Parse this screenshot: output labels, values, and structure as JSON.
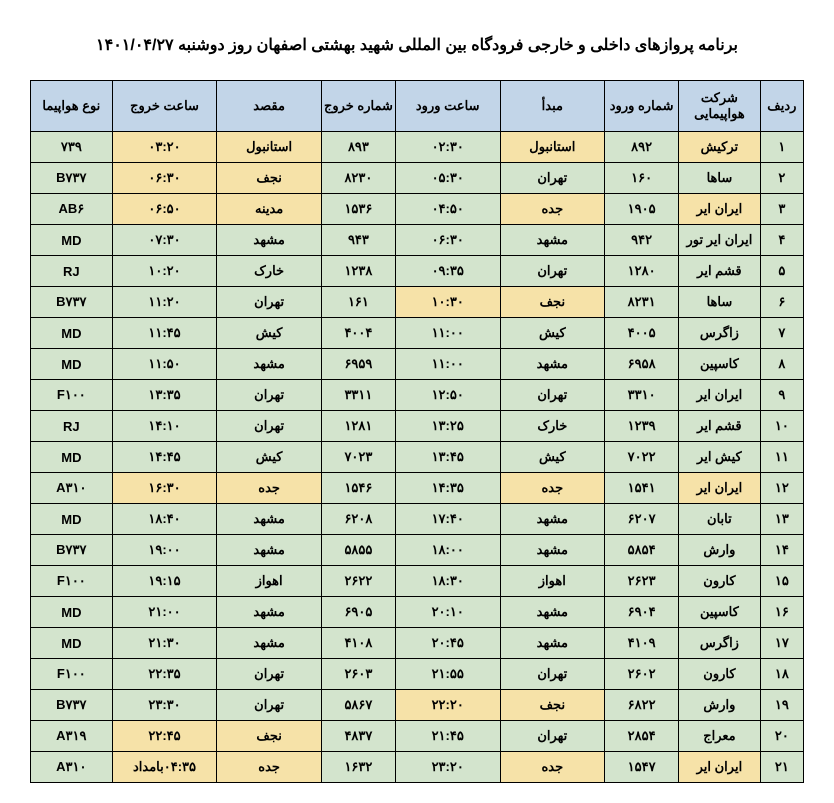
{
  "title": "برنامه پروازهای داخلی و خارجی فرودگاه بین المللی شهید بهشتی اصفهان روز دوشنبه ۱۴۰۱/۰۴/۲۷",
  "colors": {
    "header_bg": "#c2d5e8",
    "green_bg": "#d3e4cd",
    "yellow_bg": "#f6e2a8",
    "border": "#000000"
  },
  "headers": {
    "row_num": "ردیف",
    "airline": "شرکت هواپیمایی",
    "arrival_num": "شماره ورود",
    "origin": "مبدأ",
    "arrival_time": "ساعت ورود",
    "departure_num": "شماره خروج",
    "destination": "مقصد",
    "departure_time": "ساعت خروج",
    "aircraft": "نوع هواپیما"
  },
  "rows": [
    {
      "n": "۱",
      "airline": "ترکیش",
      "arrnum": "۸۹۲",
      "origin": "استانبول",
      "arrtime": "۰۲:۳۰",
      "depnum": "۸۹۳",
      "dest": "استانبول",
      "deptime": "۰۳:۲۰",
      "aircraft": "۷۳۹",
      "c": {
        "n": "g",
        "airline": "y",
        "arrnum": "g",
        "origin": "y",
        "arrtime": "g",
        "depnum": "g",
        "dest": "y",
        "deptime": "y",
        "aircraft": "g"
      }
    },
    {
      "n": "۲",
      "airline": "ساها",
      "arrnum": "۱۶۰",
      "origin": "تهران",
      "arrtime": "۰۵:۳۰",
      "depnum": "۸۲۳۰",
      "dest": "نجف",
      "deptime": "۰۶:۳۰",
      "aircraft": "B۷۳۷",
      "c": {
        "n": "g",
        "airline": "g",
        "arrnum": "g",
        "origin": "g",
        "arrtime": "g",
        "depnum": "g",
        "dest": "y",
        "deptime": "y",
        "aircraft": "g"
      }
    },
    {
      "n": "۳",
      "airline": "ایران ایر",
      "arrnum": "۱۹۰۵",
      "origin": "جده",
      "arrtime": "۰۴:۵۰",
      "depnum": "۱۵۳۶",
      "dest": "مدینه",
      "deptime": "۰۶:۵۰",
      "aircraft": "AB۶",
      "c": {
        "n": "g",
        "airline": "y",
        "arrnum": "g",
        "origin": "y",
        "arrtime": "g",
        "depnum": "g",
        "dest": "y",
        "deptime": "y",
        "aircraft": "g"
      }
    },
    {
      "n": "۴",
      "airline": "ایران ایر تور",
      "arrnum": "۹۴۲",
      "origin": "مشهد",
      "arrtime": "۰۶:۳۰",
      "depnum": "۹۴۳",
      "dest": "مشهد",
      "deptime": "۰۷:۳۰",
      "aircraft": "MD",
      "c": {
        "n": "g",
        "airline": "g",
        "arrnum": "g",
        "origin": "g",
        "arrtime": "g",
        "depnum": "g",
        "dest": "g",
        "deptime": "g",
        "aircraft": "g"
      }
    },
    {
      "n": "۵",
      "airline": "قشم ایر",
      "arrnum": "۱۲۸۰",
      "origin": "تهران",
      "arrtime": "۰۹:۳۵",
      "depnum": "۱۲۳۸",
      "dest": "خارک",
      "deptime": "۱۰:۲۰",
      "aircraft": "RJ",
      "c": {
        "n": "g",
        "airline": "g",
        "arrnum": "g",
        "origin": "g",
        "arrtime": "g",
        "depnum": "g",
        "dest": "g",
        "deptime": "g",
        "aircraft": "g"
      }
    },
    {
      "n": "۶",
      "airline": "ساها",
      "arrnum": "۸۲۳۱",
      "origin": "نجف",
      "arrtime": "۱۰:۳۰",
      "depnum": "۱۶۱",
      "dest": "تهران",
      "deptime": "۱۱:۲۰",
      "aircraft": "B۷۳۷",
      "c": {
        "n": "g",
        "airline": "g",
        "arrnum": "g",
        "origin": "y",
        "arrtime": "y",
        "depnum": "g",
        "dest": "g",
        "deptime": "g",
        "aircraft": "g"
      }
    },
    {
      "n": "۷",
      "airline": "زاگرس",
      "arrnum": "۴۰۰۵",
      "origin": "کیش",
      "arrtime": "۱۱:۰۰",
      "depnum": "۴۰۰۴",
      "dest": "کیش",
      "deptime": "۱۱:۴۵",
      "aircraft": "MD",
      "c": {
        "n": "g",
        "airline": "g",
        "arrnum": "g",
        "origin": "g",
        "arrtime": "g",
        "depnum": "g",
        "dest": "g",
        "deptime": "g",
        "aircraft": "g"
      }
    },
    {
      "n": "۸",
      "airline": "کاسپین",
      "arrnum": "۶۹۵۸",
      "origin": "مشهد",
      "arrtime": "۱۱:۰۰",
      "depnum": "۶۹۵۹",
      "dest": "مشهد",
      "deptime": "۱۱:۵۰",
      "aircraft": "MD",
      "c": {
        "n": "g",
        "airline": "g",
        "arrnum": "g",
        "origin": "g",
        "arrtime": "g",
        "depnum": "g",
        "dest": "g",
        "deptime": "g",
        "aircraft": "g"
      }
    },
    {
      "n": "۹",
      "airline": "ایران ایر",
      "arrnum": "۳۳۱۰",
      "origin": "تهران",
      "arrtime": "۱۲:۵۰",
      "depnum": "۳۳۱۱",
      "dest": "تهران",
      "deptime": "۱۳:۳۵",
      "aircraft": "F۱۰۰",
      "c": {
        "n": "g",
        "airline": "g",
        "arrnum": "g",
        "origin": "g",
        "arrtime": "g",
        "depnum": "g",
        "dest": "g",
        "deptime": "g",
        "aircraft": "g"
      }
    },
    {
      "n": "۱۰",
      "airline": "قشم ایر",
      "arrnum": "۱۲۳۹",
      "origin": "خارک",
      "arrtime": "۱۳:۲۵",
      "depnum": "۱۲۸۱",
      "dest": "تهران",
      "deptime": "۱۴:۱۰",
      "aircraft": "RJ",
      "c": {
        "n": "g",
        "airline": "g",
        "arrnum": "g",
        "origin": "g",
        "arrtime": "g",
        "depnum": "g",
        "dest": "g",
        "deptime": "g",
        "aircraft": "g"
      }
    },
    {
      "n": "۱۱",
      "airline": "کیش ایر",
      "arrnum": "۷۰۲۲",
      "origin": "کیش",
      "arrtime": "۱۳:۴۵",
      "depnum": "۷۰۲۳",
      "dest": "کیش",
      "deptime": "۱۴:۴۵",
      "aircraft": "MD",
      "c": {
        "n": "g",
        "airline": "g",
        "arrnum": "g",
        "origin": "g",
        "arrtime": "g",
        "depnum": "g",
        "dest": "g",
        "deptime": "g",
        "aircraft": "g"
      }
    },
    {
      "n": "۱۲",
      "airline": "ایران ایر",
      "arrnum": "۱۵۴۱",
      "origin": "جده",
      "arrtime": "۱۴:۳۵",
      "depnum": "۱۵۴۶",
      "dest": "جده",
      "deptime": "۱۶:۳۰",
      "aircraft": "A۳۱۰",
      "c": {
        "n": "g",
        "airline": "y",
        "arrnum": "g",
        "origin": "y",
        "arrtime": "g",
        "depnum": "g",
        "dest": "y",
        "deptime": "y",
        "aircraft": "g"
      }
    },
    {
      "n": "۱۳",
      "airline": "تابان",
      "arrnum": "۶۲۰۷",
      "origin": "مشهد",
      "arrtime": "۱۷:۴۰",
      "depnum": "۶۲۰۸",
      "dest": "مشهد",
      "deptime": "۱۸:۴۰",
      "aircraft": "MD",
      "c": {
        "n": "g",
        "airline": "g",
        "arrnum": "g",
        "origin": "g",
        "arrtime": "g",
        "depnum": "g",
        "dest": "g",
        "deptime": "g",
        "aircraft": "g"
      }
    },
    {
      "n": "۱۴",
      "airline": "وارش",
      "arrnum": "۵۸۵۴",
      "origin": "مشهد",
      "arrtime": "۱۸:۰۰",
      "depnum": "۵۸۵۵",
      "dest": "مشهد",
      "deptime": "۱۹:۰۰",
      "aircraft": "B۷۳۷",
      "c": {
        "n": "g",
        "airline": "g",
        "arrnum": "g",
        "origin": "g",
        "arrtime": "g",
        "depnum": "g",
        "dest": "g",
        "deptime": "g",
        "aircraft": "g"
      }
    },
    {
      "n": "۱۵",
      "airline": "کارون",
      "arrnum": "۲۶۲۳",
      "origin": "اهواز",
      "arrtime": "۱۸:۳۰",
      "depnum": "۲۶۲۲",
      "dest": "اهواز",
      "deptime": "۱۹:۱۵",
      "aircraft": "F۱۰۰",
      "c": {
        "n": "g",
        "airline": "g",
        "arrnum": "g",
        "origin": "g",
        "arrtime": "g",
        "depnum": "g",
        "dest": "g",
        "deptime": "g",
        "aircraft": "g"
      }
    },
    {
      "n": "۱۶",
      "airline": "کاسپین",
      "arrnum": "۶۹۰۴",
      "origin": "مشهد",
      "arrtime": "۲۰:۱۰",
      "depnum": "۶۹۰۵",
      "dest": "مشهد",
      "deptime": "۲۱:۰۰",
      "aircraft": "MD",
      "c": {
        "n": "g",
        "airline": "g",
        "arrnum": "g",
        "origin": "g",
        "arrtime": "g",
        "depnum": "g",
        "dest": "g",
        "deptime": "g",
        "aircraft": "g"
      }
    },
    {
      "n": "۱۷",
      "airline": "زاگرس",
      "arrnum": "۴۱۰۹",
      "origin": "مشهد",
      "arrtime": "۲۰:۴۵",
      "depnum": "۴۱۰۸",
      "dest": "مشهد",
      "deptime": "۲۱:۳۰",
      "aircraft": "MD",
      "c": {
        "n": "g",
        "airline": "g",
        "arrnum": "g",
        "origin": "g",
        "arrtime": "g",
        "depnum": "g",
        "dest": "g",
        "deptime": "g",
        "aircraft": "g"
      }
    },
    {
      "n": "۱۸",
      "airline": "کارون",
      "arrnum": "۲۶۰۲",
      "origin": "تهران",
      "arrtime": "۲۱:۵۵",
      "depnum": "۲۶۰۳",
      "dest": "تهران",
      "deptime": "۲۲:۳۵",
      "aircraft": "F۱۰۰",
      "c": {
        "n": "g",
        "airline": "g",
        "arrnum": "g",
        "origin": "g",
        "arrtime": "g",
        "depnum": "g",
        "dest": "g",
        "deptime": "g",
        "aircraft": "g"
      }
    },
    {
      "n": "۱۹",
      "airline": "وارش",
      "arrnum": "۶۸۲۲",
      "origin": "نجف",
      "arrtime": "۲۲:۲۰",
      "depnum": "۵۸۶۷",
      "dest": "تهران",
      "deptime": "۲۳:۳۰",
      "aircraft": "B۷۳۷",
      "c": {
        "n": "g",
        "airline": "g",
        "arrnum": "g",
        "origin": "y",
        "arrtime": "y",
        "depnum": "g",
        "dest": "g",
        "deptime": "g",
        "aircraft": "g"
      }
    },
    {
      "n": "۲۰",
      "airline": "معراج",
      "arrnum": "۲۸۵۴",
      "origin": "تهران",
      "arrtime": "۲۱:۴۵",
      "depnum": "۴۸۳۷",
      "dest": "نجف",
      "deptime": "۲۲:۴۵",
      "aircraft": "A۳۱۹",
      "c": {
        "n": "g",
        "airline": "g",
        "arrnum": "g",
        "origin": "g",
        "arrtime": "g",
        "depnum": "g",
        "dest": "y",
        "deptime": "y",
        "aircraft": "g"
      }
    },
    {
      "n": "۲۱",
      "airline": "ایران ایر",
      "arrnum": "۱۵۴۷",
      "origin": "جده",
      "arrtime": "۲۳:۲۰",
      "depnum": "۱۶۳۲",
      "dest": "جده",
      "deptime": "۰۴:۳۵بامداد",
      "aircraft": "A۳۱۰",
      "c": {
        "n": "g",
        "airline": "y",
        "arrnum": "g",
        "origin": "y",
        "arrtime": "g",
        "depnum": "g",
        "dest": "y",
        "deptime": "y",
        "aircraft": "g"
      }
    }
  ]
}
